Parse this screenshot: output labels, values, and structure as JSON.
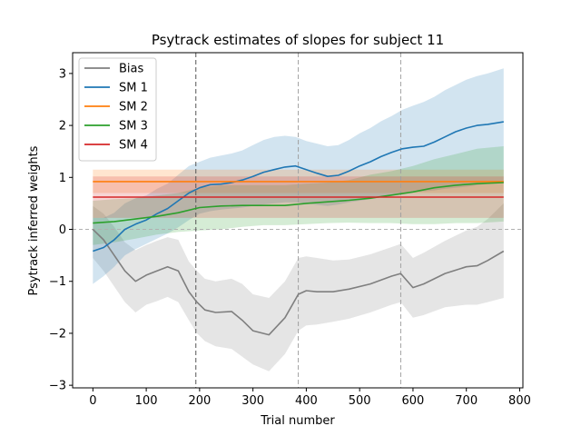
{
  "chart_data": {
    "type": "line",
    "title": "Psytrack estimates of slopes for subject 11",
    "xlabel": "Trial number",
    "ylabel": "Psytrack inferred weights",
    "xlim": [
      -38,
      806
    ],
    "ylim": [
      -3.05,
      3.4
    ],
    "xticks": [
      0,
      100,
      200,
      300,
      400,
      500,
      600,
      700,
      800
    ],
    "yticks": [
      -3,
      -2,
      -1,
      0,
      1,
      2,
      3
    ],
    "legend_position": "upper-left",
    "reference_lines": {
      "horizontal_zero": 0,
      "session_boundaries": [
        193,
        385,
        577
      ]
    },
    "series": [
      {
        "name": "Bias",
        "color": "#7f7f7f",
        "band_color": "#7f7f7f",
        "x": [
          0,
          20,
          40,
          60,
          80,
          100,
          120,
          140,
          160,
          180,
          195,
          210,
          230,
          260,
          280,
          300,
          330,
          360,
          385,
          400,
          420,
          450,
          480,
          520,
          560,
          577,
          600,
          620,
          660,
          700,
          720,
          740,
          770
        ],
        "values": [
          0.0,
          -0.2,
          -0.5,
          -0.8,
          -1.0,
          -0.88,
          -0.8,
          -0.72,
          -0.8,
          -1.2,
          -1.4,
          -1.55,
          -1.6,
          -1.58,
          -1.75,
          -1.95,
          -2.03,
          -1.7,
          -1.25,
          -1.18,
          -1.2,
          -1.2,
          -1.15,
          -1.05,
          -0.9,
          -0.85,
          -1.12,
          -1.05,
          -0.85,
          -0.72,
          -0.7,
          -0.6,
          -0.42
        ],
        "lower": [
          -0.55,
          -0.8,
          -1.1,
          -1.4,
          -1.6,
          -1.45,
          -1.38,
          -1.3,
          -1.4,
          -1.75,
          -2.0,
          -2.15,
          -2.25,
          -2.3,
          -2.45,
          -2.6,
          -2.73,
          -2.4,
          -1.95,
          -1.85,
          -1.83,
          -1.78,
          -1.72,
          -1.6,
          -1.45,
          -1.4,
          -1.7,
          -1.65,
          -1.5,
          -1.45,
          -1.45,
          -1.4,
          -1.32
        ],
        "upper": [
          0.45,
          0.3,
          0.05,
          -0.25,
          -0.4,
          -0.3,
          -0.22,
          -0.15,
          -0.2,
          -0.62,
          -0.8,
          -0.95,
          -1.0,
          -0.95,
          -1.05,
          -1.25,
          -1.32,
          -1.0,
          -0.55,
          -0.52,
          -0.55,
          -0.6,
          -0.58,
          -0.48,
          -0.34,
          -0.28,
          -0.55,
          -0.45,
          -0.22,
          -0.02,
          0.05,
          0.2,
          0.5
        ]
      },
      {
        "name": "SM 1",
        "color": "#1f77b4",
        "band_color": "#1f77b4",
        "x": [
          0,
          20,
          40,
          60,
          80,
          100,
          120,
          140,
          160,
          180,
          200,
          220,
          240,
          260,
          280,
          300,
          320,
          340,
          360,
          380,
          400,
          420,
          440,
          460,
          480,
          500,
          520,
          540,
          560,
          580,
          600,
          620,
          640,
          660,
          680,
          700,
          720,
          740,
          770
        ],
        "values": [
          -0.42,
          -0.35,
          -0.2,
          0.0,
          0.1,
          0.18,
          0.3,
          0.4,
          0.55,
          0.7,
          0.8,
          0.86,
          0.87,
          0.9,
          0.95,
          1.02,
          1.1,
          1.15,
          1.2,
          1.22,
          1.15,
          1.08,
          1.02,
          1.04,
          1.12,
          1.22,
          1.3,
          1.4,
          1.48,
          1.55,
          1.58,
          1.6,
          1.68,
          1.78,
          1.88,
          1.95,
          2.0,
          2.02,
          2.07
        ],
        "lower": [
          -1.05,
          -0.9,
          -0.72,
          -0.5,
          -0.38,
          -0.28,
          -0.18,
          -0.08,
          0.04,
          0.18,
          0.3,
          0.35,
          0.38,
          0.4,
          0.42,
          0.45,
          0.48,
          0.5,
          0.52,
          0.52,
          0.5,
          0.47,
          0.45,
          0.48,
          0.52,
          0.55,
          0.58,
          0.62,
          0.65,
          0.7,
          0.72,
          0.73,
          0.75,
          0.78,
          0.8,
          0.82,
          0.85,
          0.88,
          0.9
        ],
        "upper": [
          0.22,
          0.22,
          0.32,
          0.5,
          0.6,
          0.65,
          0.78,
          0.88,
          1.05,
          1.22,
          1.3,
          1.38,
          1.42,
          1.46,
          1.52,
          1.62,
          1.72,
          1.78,
          1.8,
          1.78,
          1.7,
          1.65,
          1.6,
          1.62,
          1.72,
          1.85,
          1.95,
          2.08,
          2.18,
          2.3,
          2.38,
          2.45,
          2.55,
          2.68,
          2.78,
          2.88,
          2.95,
          3.0,
          3.1
        ]
      },
      {
        "name": "SM 2",
        "color": "#ff7f0e",
        "band_color": "#ff7f0e",
        "x": [
          0,
          770
        ],
        "values": [
          0.92,
          0.92
        ],
        "lower": [
          0.7,
          0.7
        ],
        "upper": [
          1.15,
          1.15
        ]
      },
      {
        "name": "SM 3",
        "color": "#2ca02c",
        "band_color": "#2ca02c",
        "x": [
          0,
          40,
          80,
          120,
          160,
          200,
          240,
          280,
          320,
          360,
          400,
          440,
          480,
          520,
          560,
          600,
          640,
          680,
          720,
          770
        ],
        "values": [
          0.12,
          0.15,
          0.2,
          0.25,
          0.32,
          0.42,
          0.45,
          0.46,
          0.46,
          0.46,
          0.5,
          0.53,
          0.56,
          0.6,
          0.66,
          0.72,
          0.8,
          0.85,
          0.88,
          0.9
        ],
        "lower": [
          -0.3,
          -0.25,
          -0.18,
          -0.1,
          -0.05,
          -0.02,
          0.0,
          0.05,
          0.08,
          0.08,
          0.1,
          0.12,
          0.13,
          0.12,
          0.12,
          0.1,
          0.1,
          0.12,
          0.12,
          0.15
        ],
        "upper": [
          0.55,
          0.58,
          0.6,
          0.65,
          0.7,
          0.8,
          0.85,
          0.85,
          0.85,
          0.85,
          0.88,
          0.9,
          0.95,
          1.05,
          1.12,
          1.22,
          1.35,
          1.45,
          1.55,
          1.6
        ]
      },
      {
        "name": "SM 4",
        "color": "#d62728",
        "band_color": "#d62728",
        "x": [
          0,
          770
        ],
        "values": [
          0.62,
          0.62
        ],
        "lower": [
          0.22,
          0.22
        ],
        "upper": [
          1.02,
          1.02
        ]
      }
    ]
  }
}
